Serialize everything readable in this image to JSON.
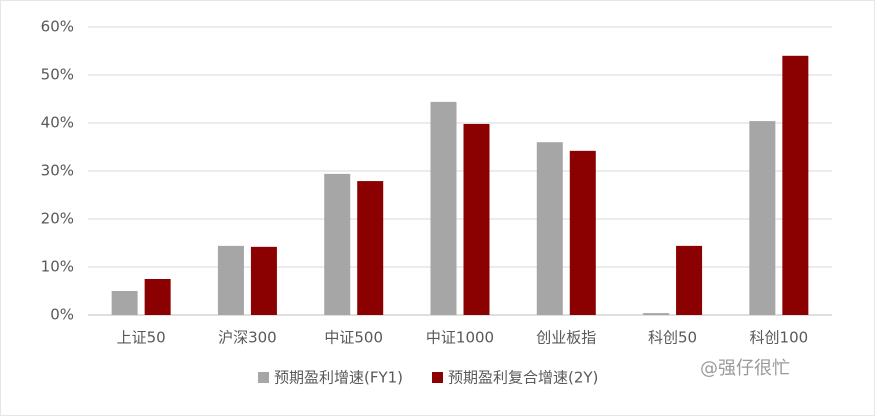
{
  "chart_data": {
    "type": "bar",
    "categories": [
      "上证50",
      "沪深300",
      "中证500",
      "中证1000",
      "创业板指",
      "科创50",
      "科创100"
    ],
    "series": [
      {
        "name": "预期盈利增速(FY1)",
        "color": "#a6a6a6",
        "values": [
          5.0,
          14.4,
          29.4,
          44.4,
          36.0,
          0.4,
          40.4
        ]
      },
      {
        "name": "预期盈利复合增速(2Y)",
        "color": "#8b0000",
        "values": [
          7.5,
          14.2,
          27.9,
          39.8,
          34.2,
          14.4,
          54.0
        ]
      }
    ],
    "ylim": [
      0,
      60
    ],
    "yticks": [
      {
        "value": 0,
        "label": "0%"
      },
      {
        "value": 10,
        "label": "10%"
      },
      {
        "value": 20,
        "label": "20%"
      },
      {
        "value": 30,
        "label": "30%"
      },
      {
        "value": 40,
        "label": "40%"
      },
      {
        "value": 50,
        "label": "50%"
      },
      {
        "value": 60,
        "label": "60%"
      }
    ],
    "grid": true,
    "legend": "bottom",
    "annotation": "@强仔很忙"
  }
}
